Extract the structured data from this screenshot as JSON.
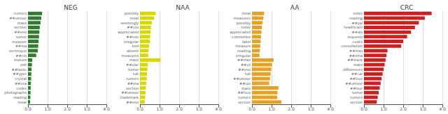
{
  "chart_data": [
    {
      "type": "bar",
      "title": "NEG",
      "orientation": "horizontal",
      "color": "#2d7d2d",
      "grid": true,
      "categories": [
        "tumors",
        "##umour",
        "mass",
        "section",
        "##eno",
        "tumor",
        "invasion",
        "##ma",
        "technique",
        "##cin",
        "texture",
        "soft",
        "##lastic",
        "##yper",
        "crystal",
        "##osa",
        "codes",
        "photographs",
        "reading",
        "meal"
      ],
      "values": [
        0.72,
        0.68,
        0.64,
        0.6,
        0.58,
        0.56,
        0.54,
        0.52,
        0.5,
        0.42,
        0.22,
        0.2,
        0.18,
        0.17,
        0.16,
        0.15,
        0.14,
        0.13,
        0.12,
        0.11
      ],
      "xlim": [
        0,
        4.0
      ],
      "xticks": [
        {
          "value": 0.0,
          "label": "0.0"
        },
        {
          "value": 1.0,
          "label": "1.0"
        },
        {
          "value": 2.0,
          "label": "2.0"
        },
        {
          "value": 3.0,
          "label": "3.0"
        },
        {
          "value": 4.0,
          "label": "4.0"
        }
      ]
    },
    {
      "type": "bar",
      "title": "NAA",
      "orientation": "horizontal",
      "color": "#d8d800",
      "grid": true,
      "categories": [
        "possibly",
        "meal",
        "seemingly",
        "##cos",
        "appreciated",
        "##ndo",
        "irregular",
        "bed",
        "absent",
        "measures",
        "mass",
        "##ular",
        "tumor",
        "tub",
        "tumors",
        "##ma",
        "section",
        "##umour",
        "trademark",
        "##eno"
      ],
      "values": [
        0.8,
        0.72,
        0.6,
        0.56,
        0.54,
        0.52,
        0.5,
        0.46,
        0.44,
        0.42,
        1.05,
        0.4,
        0.38,
        0.36,
        0.34,
        0.32,
        0.3,
        0.28,
        0.26,
        0.24
      ],
      "xlim": [
        0,
        4.0
      ],
      "xticks": [
        {
          "value": 0.0,
          "label": "0.0"
        },
        {
          "value": 1.0,
          "label": "1.0"
        },
        {
          "value": 2.0,
          "label": "2.0"
        },
        {
          "value": 3.0,
          "label": "3.0"
        },
        {
          "value": 4.0,
          "label": "4.0"
        }
      ]
    },
    {
      "type": "bar",
      "title": "AA",
      "orientation": "horizontal",
      "color": "#e8a020",
      "grid": true,
      "categories": [
        "meal",
        "measures",
        "possibly",
        "sister",
        "appreciated",
        "committee",
        "label",
        "measure",
        "reading",
        "irregular",
        "##mas",
        "##vil",
        "##eno",
        "tub",
        "##umour",
        "##ulo",
        "mass",
        "##lous",
        "tumors",
        "section"
      ],
      "values": [
        0.62,
        0.58,
        0.54,
        0.5,
        0.48,
        0.46,
        0.44,
        0.42,
        0.4,
        0.38,
        1.1,
        1.02,
        0.98,
        0.95,
        0.92,
        0.88,
        1.35,
        1.3,
        1.28,
        1.5
      ],
      "xlim": [
        0,
        4.0
      ],
      "xticks": [
        {
          "value": 0.0,
          "label": "0.0"
        },
        {
          "value": 1.0,
          "label": "1.0"
        },
        {
          "value": 2.0,
          "label": "2.0"
        },
        {
          "value": 3.0,
          "label": "3.0"
        },
        {
          "value": 4.0,
          "label": "4.0"
        }
      ]
    },
    {
      "type": "bar",
      "title": "CRC",
      "orientation": "horizontal",
      "color": "#cc2020",
      "grid": true,
      "categories": [
        "sister",
        "reading",
        "##yal",
        "healthcare",
        "##als",
        "requests",
        "codes",
        "consultation",
        "##mas",
        "##oma",
        "##stack",
        "mass",
        "differences",
        "##car",
        "##lous",
        "##umour",
        "##lour",
        "tumor",
        "tumors",
        "section"
      ],
      "values": [
        3.45,
        3.1,
        2.8,
        2.6,
        2.4,
        2.2,
        2.0,
        1.9,
        1.2,
        1.15,
        1.1,
        1.05,
        1.0,
        0.95,
        0.9,
        0.85,
        0.8,
        0.75,
        0.7,
        0.65
      ],
      "xlim": [
        0,
        4.0
      ],
      "xticks": [
        {
          "value": 0.0,
          "label": "0.0"
        },
        {
          "value": 1.0,
          "label": "1.0"
        },
        {
          "value": 2.0,
          "label": "2.0"
        },
        {
          "value": 3.0,
          "label": "3.0"
        },
        {
          "value": 4.0,
          "label": "4.0"
        }
      ]
    }
  ]
}
